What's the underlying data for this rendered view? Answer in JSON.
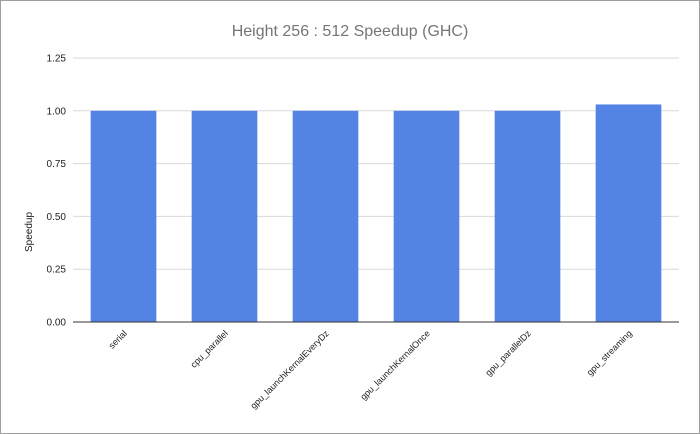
{
  "chart_data": {
    "type": "bar",
    "title": "Height 256 : 512 Speedup (GHC)",
    "xlabel": "",
    "ylabel": "Speedup",
    "categories": [
      "serial",
      "cpu_parallel",
      "gpu_launchKernalEveryDz",
      "gpu_launchKernalOnce",
      "gpu_parallelDz",
      "gpu_streaming"
    ],
    "values": [
      1.0,
      1.0,
      1.0,
      1.0,
      1.0,
      1.03
    ],
    "ylim": [
      0,
      1.25
    ],
    "yticks": [
      "0.00",
      "0.25",
      "0.50",
      "0.75",
      "1.00",
      "1.25"
    ],
    "grid": true,
    "legend": "none",
    "bar_color": "#5283e5"
  }
}
